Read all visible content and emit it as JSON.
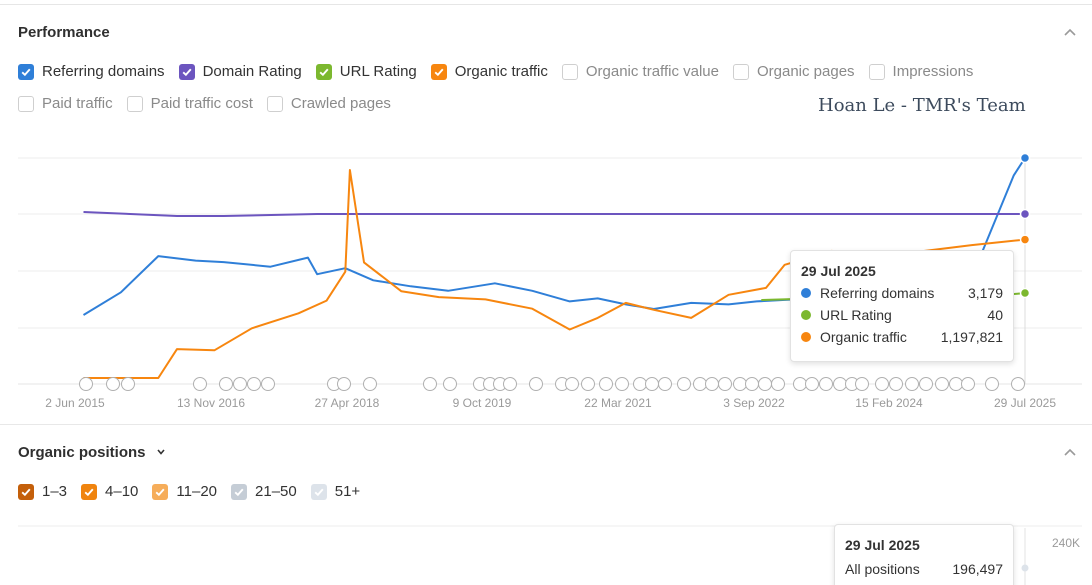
{
  "performance": {
    "title": "Performance",
    "legend": [
      {
        "label": "Referring domains",
        "checked": true,
        "color": "#2f7fd8"
      },
      {
        "label": "Domain Rating",
        "checked": true,
        "color": "#6c55bf"
      },
      {
        "label": "URL Rating",
        "checked": true,
        "color": "#7cb82f"
      },
      {
        "label": "Organic traffic",
        "checked": true,
        "color": "#f7860f"
      },
      {
        "label": "Organic traffic value",
        "checked": false,
        "color": "#cfcfcf"
      },
      {
        "label": "Organic pages",
        "checked": false,
        "color": "#cfcfcf"
      },
      {
        "label": "Impressions",
        "checked": false,
        "color": "#cfcfcf"
      },
      {
        "label": "Paid traffic",
        "checked": false,
        "color": "#cfcfcf"
      },
      {
        "label": "Paid traffic cost",
        "checked": false,
        "color": "#cfcfcf"
      },
      {
        "label": "Crawled pages",
        "checked": false,
        "color": "#cfcfcf"
      }
    ],
    "watermark": "Hoan Le - TMR's Team",
    "tooltip": {
      "date": "29 Jul 2025",
      "rows": [
        {
          "name": "Referring domains",
          "value": "3,179",
          "color": "#2f7fd8"
        },
        {
          "name": "URL Rating",
          "value": "40",
          "color": "#7cb82f"
        },
        {
          "name": "Organic traffic",
          "value": "1,197,821",
          "color": "#f7860f"
        }
      ]
    }
  },
  "organic_positions": {
    "title": "Organic positions",
    "legend": [
      {
        "label": "1–3",
        "checked": true,
        "color": "#c45f0a"
      },
      {
        "label": "4–10",
        "checked": true,
        "color": "#f0840e"
      },
      {
        "label": "11–20",
        "checked": true,
        "color": "#f6ad5a"
      },
      {
        "label": "21–50",
        "checked": true,
        "color": "#c5cdd6"
      },
      {
        "label": "51+",
        "checked": true,
        "color": "#dde3ea"
      }
    ],
    "tooltip": {
      "date": "29 Jul 2025",
      "label": "All positions",
      "value": "196,497"
    },
    "y_top_label": "240K"
  },
  "chart_data": {
    "type": "line",
    "x_tick_labels": [
      "2 Jun 2015",
      "13 Nov 2016",
      "27 Apr 2018",
      "9 Oct 2019",
      "22 Mar 2021",
      "3 Sep 2022",
      "15 Feb 2024",
      "29 Jul 2025"
    ],
    "x_range": [
      "2015-06-02",
      "2025-07-29"
    ],
    "grid": true,
    "series": [
      {
        "name": "Referring domains",
        "color": "#2f7fd8",
        "values": [
          [
            2015.5,
            1100
          ],
          [
            2015.9,
            1400
          ],
          [
            2016.3,
            1880
          ],
          [
            2016.7,
            1820
          ],
          [
            2017.0,
            1800
          ],
          [
            2017.5,
            1740
          ],
          [
            2017.9,
            1860
          ],
          [
            2018.0,
            1640
          ],
          [
            2018.3,
            1720
          ],
          [
            2018.6,
            1560
          ],
          [
            2019.0,
            1480
          ],
          [
            2019.4,
            1420
          ],
          [
            2019.9,
            1520
          ],
          [
            2020.3,
            1420
          ],
          [
            2020.7,
            1280
          ],
          [
            2021.0,
            1320
          ],
          [
            2021.3,
            1240
          ],
          [
            2021.6,
            1180
          ],
          [
            2022.0,
            1260
          ],
          [
            2022.4,
            1240
          ],
          [
            2022.7,
            1280
          ],
          [
            2023.3,
            1320
          ],
          [
            2023.8,
            1340
          ],
          [
            2024.5,
            1420
          ],
          [
            2024.9,
            1560
          ],
          [
            2025.1,
            1900
          ],
          [
            2025.3,
            2500
          ],
          [
            2025.45,
            2950
          ],
          [
            2025.57,
            3179
          ]
        ]
      },
      {
        "name": "Domain Rating",
        "color": "#6c55bf",
        "values": [
          [
            2015.5,
            69
          ],
          [
            2016.0,
            68
          ],
          [
            2016.5,
            67
          ],
          [
            2017.0,
            67
          ],
          [
            2018.0,
            68
          ],
          [
            2019.0,
            68
          ],
          [
            2020.0,
            68
          ],
          [
            2021.0,
            68
          ],
          [
            2022.0,
            68
          ],
          [
            2023.0,
            68
          ],
          [
            2024.0,
            68
          ],
          [
            2025.0,
            68
          ],
          [
            2025.57,
            68
          ]
        ]
      },
      {
        "name": "URL Rating",
        "color": "#7cb82f",
        "values": [
          [
            2022.75,
            28
          ],
          [
            2023.2,
            30
          ],
          [
            2025.3,
            36
          ],
          [
            2025.57,
            40
          ]
        ]
      },
      {
        "name": "Organic traffic",
        "color": "#f7860f",
        "values": [
          [
            2015.5,
            0
          ],
          [
            2016.3,
            0
          ],
          [
            2016.5,
            250000
          ],
          [
            2016.9,
            240000
          ],
          [
            2017.3,
            430000
          ],
          [
            2017.8,
            560000
          ],
          [
            2018.1,
            670000
          ],
          [
            2018.3,
            920000
          ],
          [
            2018.35,
            1800000
          ],
          [
            2018.5,
            1000000
          ],
          [
            2018.9,
            750000
          ],
          [
            2019.3,
            700000
          ],
          [
            2019.8,
            680000
          ],
          [
            2020.3,
            600000
          ],
          [
            2020.7,
            420000
          ],
          [
            2021.0,
            520000
          ],
          [
            2021.3,
            650000
          ],
          [
            2021.6,
            590000
          ],
          [
            2022.0,
            520000
          ],
          [
            2022.4,
            720000
          ],
          [
            2022.8,
            780000
          ],
          [
            2023.0,
            980000
          ],
          [
            2023.5,
            1100000
          ],
          [
            2024.0,
            1050000
          ],
          [
            2024.5,
            1100000
          ],
          [
            2025.0,
            1150000
          ],
          [
            2025.57,
            1197821
          ]
        ]
      }
    ]
  }
}
